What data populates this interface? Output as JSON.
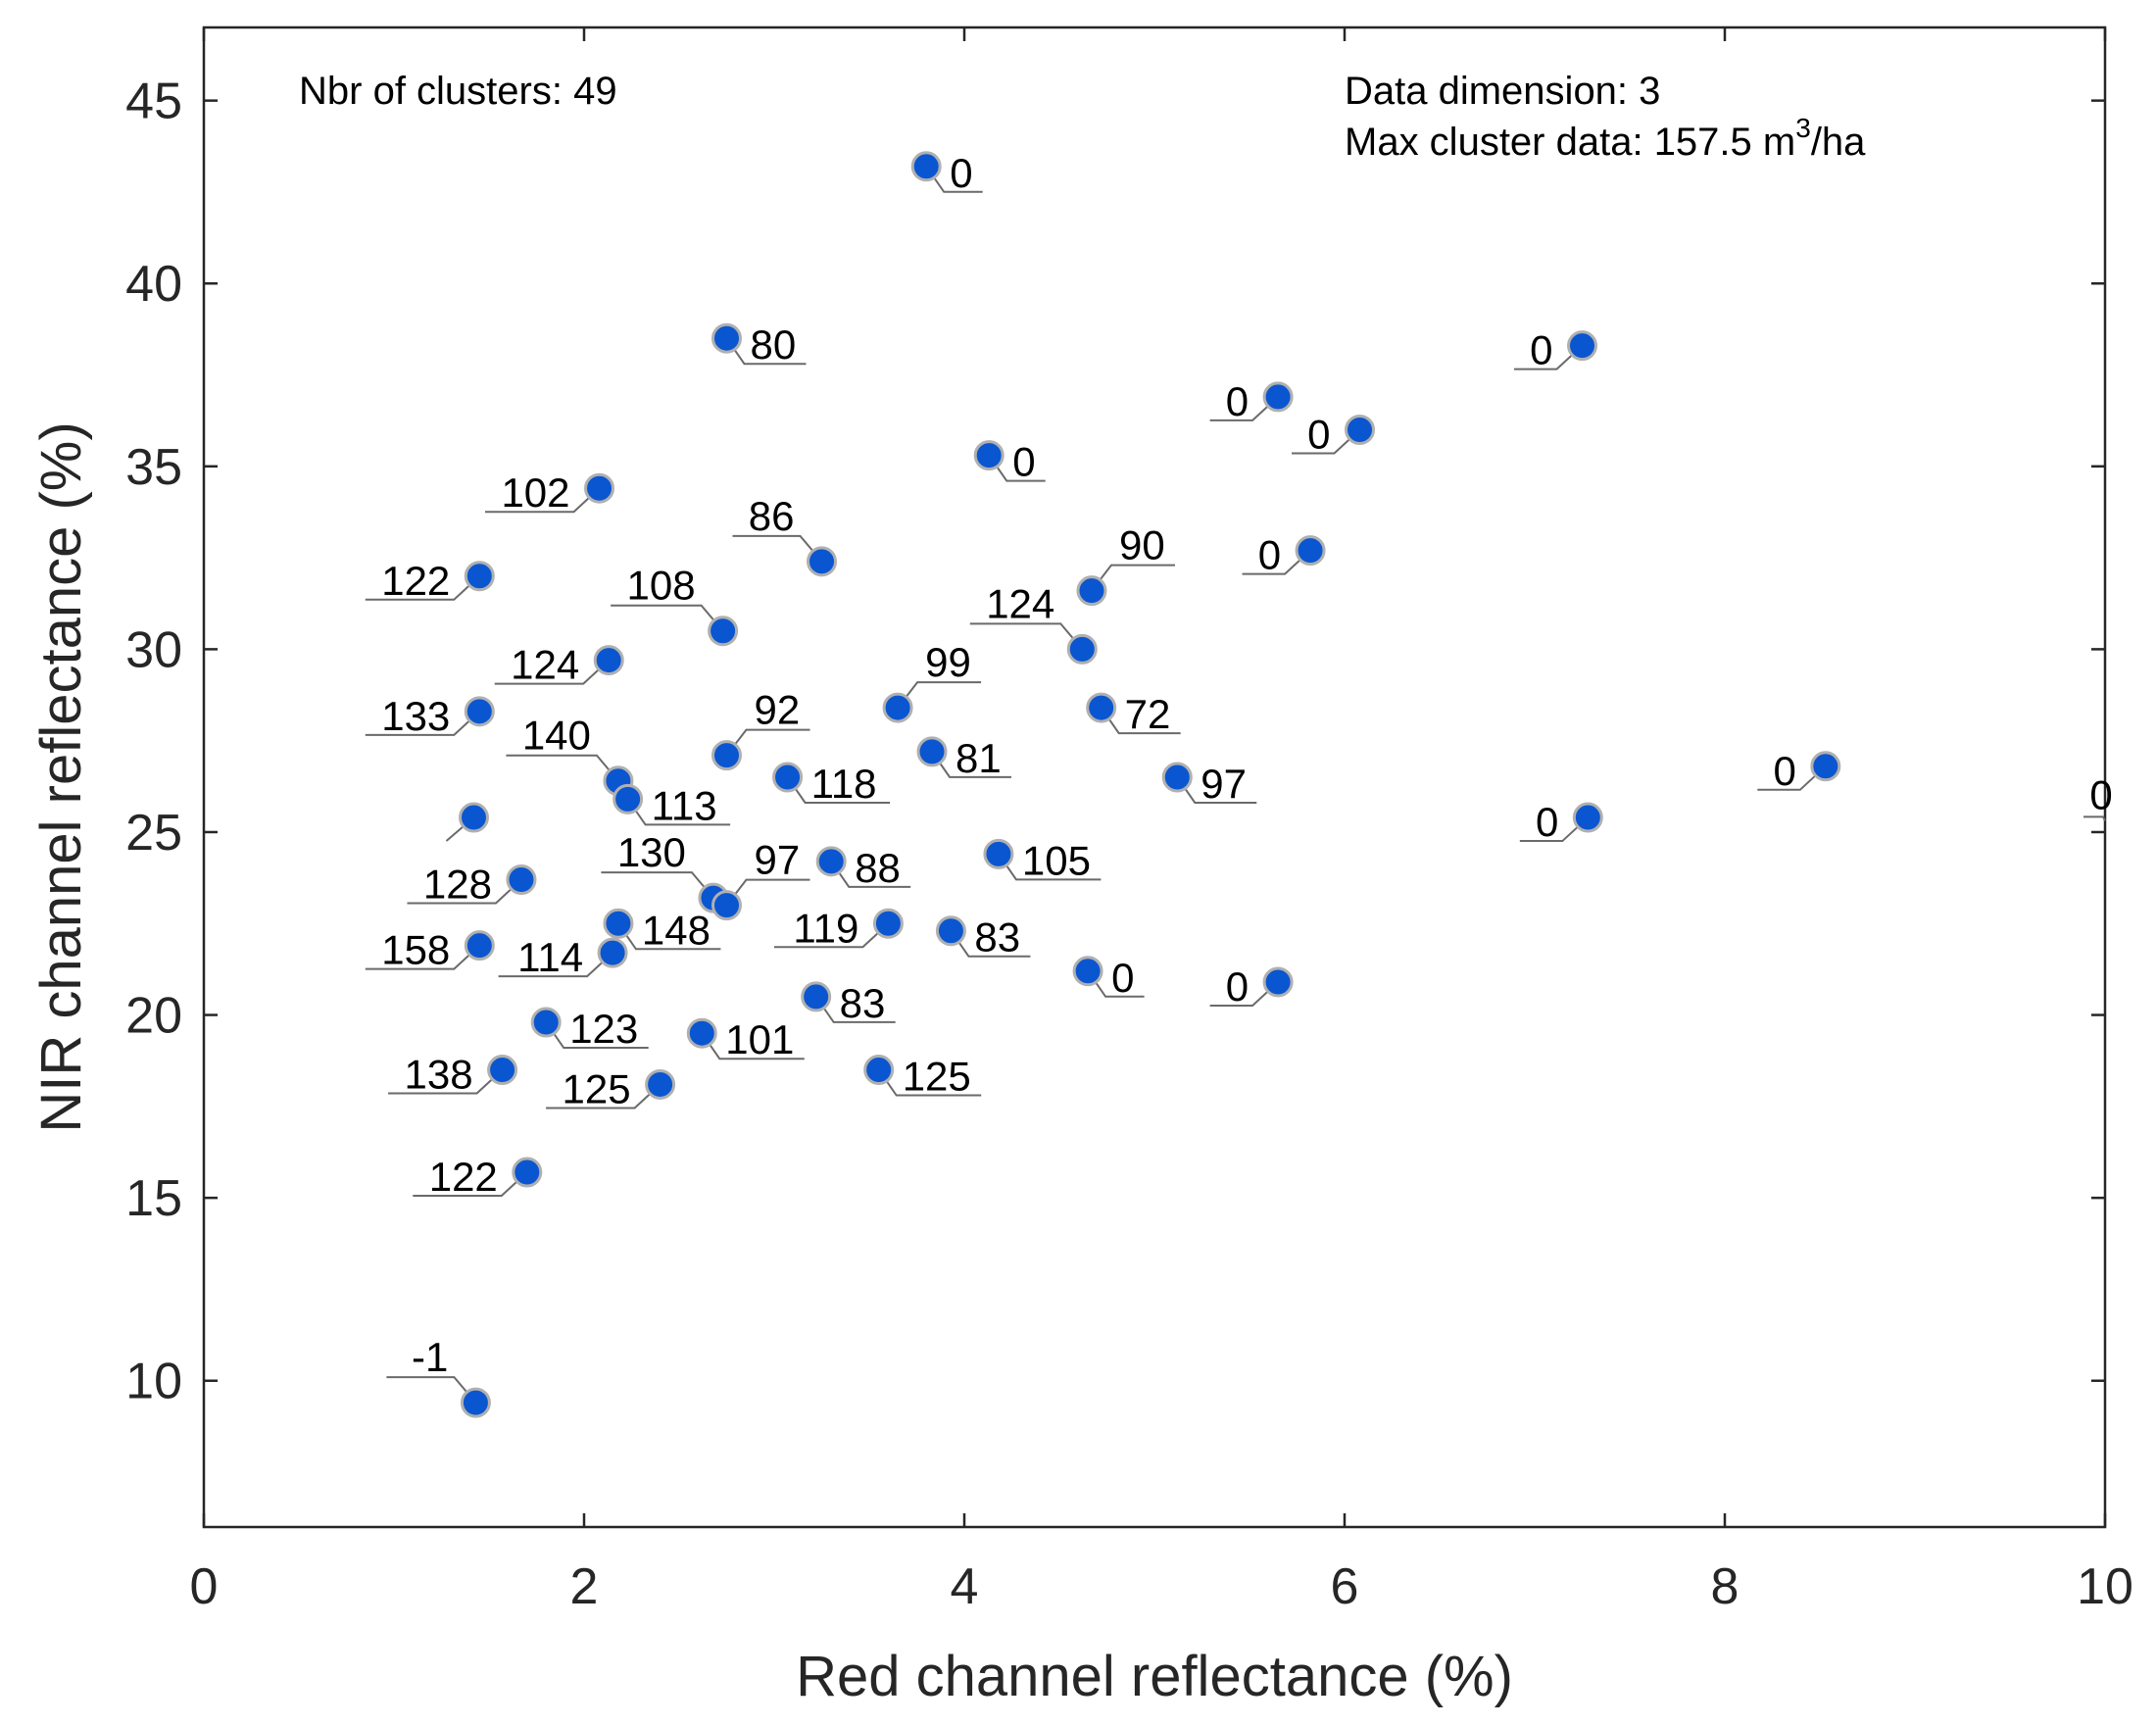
{
  "chart_data": {
    "type": "scatter",
    "xlabel": "Red channel reflectance (%)",
    "ylabel": "NIR channel reflectance (%)",
    "xlim": [
      0,
      10
    ],
    "ylim": [
      6,
      47
    ],
    "xticks": [
      0,
      2,
      4,
      6,
      8,
      10
    ],
    "yticks": [
      10,
      15,
      20,
      25,
      30,
      35,
      40,
      45
    ],
    "grid": false,
    "marker_color": "#0a56d0",
    "annotations": {
      "clusters_prefix": "Nbr of clusters: ",
      "clusters_value": "49",
      "dimension_prefix": "Data dimension: ",
      "dimension_value": "3",
      "max_prefix": "Max cluster data: ",
      "max_value": "157.5",
      "max_unit_base": " m",
      "max_unit_sup": "3",
      "max_unit_tail": "/ha"
    },
    "points": [
      {
        "x": 3.8,
        "y": 43.2,
        "label": "0",
        "pos": "right-low"
      },
      {
        "x": 2.75,
        "y": 38.5,
        "label": "80",
        "pos": "right-low"
      },
      {
        "x": 7.25,
        "y": 38.3,
        "label": "0",
        "pos": "left-low"
      },
      {
        "x": 5.65,
        "y": 36.9,
        "label": "0",
        "pos": "left-low"
      },
      {
        "x": 6.08,
        "y": 36.0,
        "label": "0",
        "pos": "left-low"
      },
      {
        "x": 4.13,
        "y": 35.3,
        "label": "0",
        "pos": "right-low"
      },
      {
        "x": 2.08,
        "y": 34.4,
        "label": "102",
        "pos": "left-low"
      },
      {
        "x": 3.25,
        "y": 32.4,
        "label": "86",
        "pos": "upper-left"
      },
      {
        "x": 5.82,
        "y": 32.7,
        "label": "0",
        "pos": "left-low"
      },
      {
        "x": 1.45,
        "y": 32.0,
        "label": "122",
        "pos": "left-low"
      },
      {
        "x": 4.67,
        "y": 31.6,
        "label": "90",
        "pos": "upper-right"
      },
      {
        "x": 2.73,
        "y": 30.5,
        "label": "108",
        "pos": "upper-left"
      },
      {
        "x": 4.62,
        "y": 30.0,
        "label": "124",
        "pos": "upper-left"
      },
      {
        "x": 2.13,
        "y": 29.7,
        "label": "124",
        "pos": "left-low"
      },
      {
        "x": 3.65,
        "y": 28.4,
        "label": "99",
        "pos": "upper-right"
      },
      {
        "x": 4.72,
        "y": 28.4,
        "label": "72",
        "pos": "right-low"
      },
      {
        "x": 1.45,
        "y": 28.3,
        "label": "133",
        "pos": "left-low"
      },
      {
        "x": 2.75,
        "y": 27.1,
        "label": "92",
        "pos": "upper-right"
      },
      {
        "x": 3.83,
        "y": 27.2,
        "label": "81",
        "pos": "right-low"
      },
      {
        "x": 2.18,
        "y": 26.4,
        "label": "140",
        "pos": "upper-left"
      },
      {
        "x": 3.07,
        "y": 26.5,
        "label": "118",
        "pos": "right-low"
      },
      {
        "x": 5.12,
        "y": 26.5,
        "label": "97",
        "pos": "right-low"
      },
      {
        "x": 2.23,
        "y": 25.9,
        "label": "113",
        "pos": "right-low"
      },
      {
        "x": 8.53,
        "y": 26.8,
        "label": "0",
        "pos": "left-low"
      },
      {
        "x": 7.28,
        "y": 25.4,
        "label": "0",
        "pos": "left-low"
      },
      {
        "x": 1.42,
        "y": 25.4,
        "label": "",
        "pos": "leader-only"
      },
      {
        "x": 3.3,
        "y": 24.2,
        "label": "88",
        "pos": "right-low"
      },
      {
        "x": 4.18,
        "y": 24.4,
        "label": "105",
        "pos": "right-low"
      },
      {
        "x": 1.67,
        "y": 23.7,
        "label": "128",
        "pos": "left-low"
      },
      {
        "x": 2.68,
        "y": 23.2,
        "label": "130",
        "pos": "upper-left"
      },
      {
        "x": 2.75,
        "y": 23.0,
        "label": "97",
        "pos": "upper-right"
      },
      {
        "x": 2.18,
        "y": 22.5,
        "label": "148",
        "pos": "right-low"
      },
      {
        "x": 3.6,
        "y": 22.5,
        "label": "119",
        "pos": "left-low"
      },
      {
        "x": 3.93,
        "y": 22.3,
        "label": "83",
        "pos": "right-low"
      },
      {
        "x": 1.45,
        "y": 21.9,
        "label": "158",
        "pos": "left-low"
      },
      {
        "x": 2.15,
        "y": 21.7,
        "label": "114",
        "pos": "left-low"
      },
      {
        "x": 4.65,
        "y": 21.2,
        "label": "0",
        "pos": "right-low"
      },
      {
        "x": 5.65,
        "y": 20.9,
        "label": "0",
        "pos": "left-low"
      },
      {
        "x": 3.22,
        "y": 20.5,
        "label": "83",
        "pos": "right-low"
      },
      {
        "x": 1.8,
        "y": 19.8,
        "label": "123",
        "pos": "right-low"
      },
      {
        "x": 2.62,
        "y": 19.5,
        "label": "101",
        "pos": "right-low"
      },
      {
        "x": 1.57,
        "y": 18.5,
        "label": "138",
        "pos": "left-low"
      },
      {
        "x": 3.55,
        "y": 18.5,
        "label": "125",
        "pos": "right-low"
      },
      {
        "x": 2.4,
        "y": 18.1,
        "label": "125",
        "pos": "left-low"
      },
      {
        "x": 1.7,
        "y": 15.7,
        "label": "122",
        "pos": "left-low"
      },
      {
        "x": 1.43,
        "y": 9.4,
        "label": "-1",
        "pos": "upper-left"
      }
    ],
    "edge_label": {
      "x": 10.0,
      "y": 25.9,
      "label": "0"
    }
  }
}
